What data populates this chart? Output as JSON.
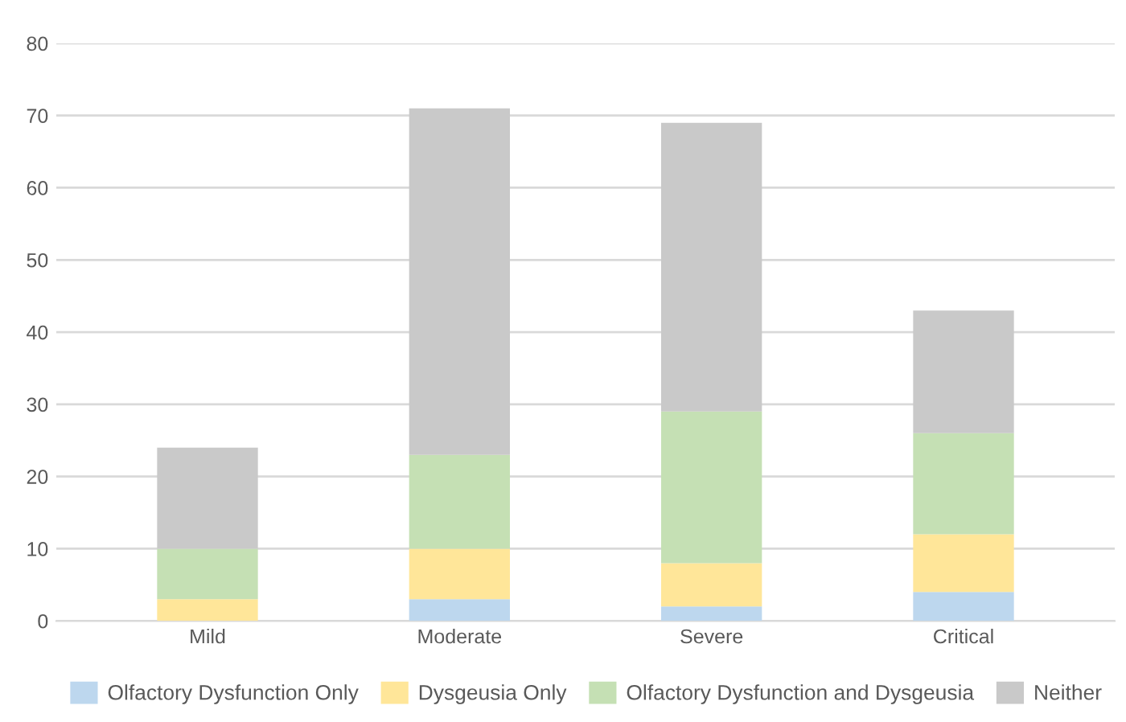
{
  "chart_data": {
    "type": "bar",
    "stacked": true,
    "categories": [
      "Mild",
      "Moderate",
      "Severe",
      "Critical"
    ],
    "series": [
      {
        "name": "Olfactory Dysfunction Only",
        "color": "#bdd7ee",
        "values": [
          0,
          3,
          2,
          4
        ]
      },
      {
        "name": "Dysgeusia Only",
        "color": "#ffe699",
        "values": [
          3,
          7,
          6,
          8
        ]
      },
      {
        "name": "Olfactory Dysfunction and Dysgeusia",
        "color": "#c5e0b4",
        "values": [
          7,
          13,
          21,
          14
        ]
      },
      {
        "name": "Neither",
        "color": "#c9c9c9",
        "values": [
          14,
          48,
          40,
          17
        ]
      }
    ],
    "ylim": [
      0,
      80
    ],
    "yticks": [
      0,
      10,
      20,
      30,
      40,
      50,
      60,
      70,
      80
    ],
    "grid": "y",
    "legend": "bottom"
  }
}
